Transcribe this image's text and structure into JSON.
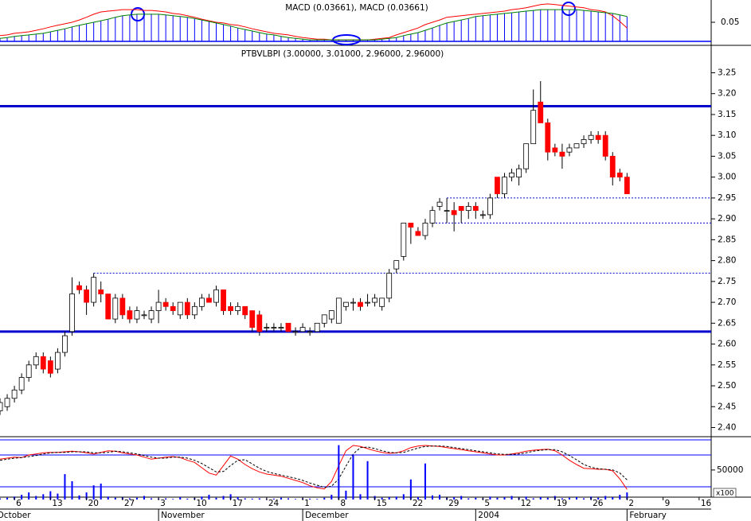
{
  "chart_data": [
    {
      "type": "candlestick",
      "title": "PTBVLBPI (3.00000, 3.01000, 2.96000, 2.96000)",
      "x": [
        "10-02",
        "10-03",
        "10-06",
        "10-07",
        "10-08",
        "10-09",
        "10-10",
        "10-13",
        "10-14",
        "10-15",
        "10-16",
        "10-17",
        "10-20",
        "10-21",
        "10-22",
        "10-23",
        "10-24",
        "10-27",
        "10-28",
        "10-29",
        "10-30",
        "10-31",
        "11-03",
        "11-04",
        "11-05",
        "11-06",
        "11-07",
        "11-10",
        "11-11",
        "11-12",
        "11-13",
        "11-14",
        "11-17",
        "11-18",
        "11-19",
        "11-20",
        "11-21",
        "11-24",
        "11-25",
        "11-26",
        "11-27",
        "11-28",
        "12-01",
        "12-02",
        "12-03",
        "12-04",
        "12-05",
        "12-08",
        "12-09",
        "12-10",
        "12-11",
        "12-12",
        "12-15",
        "12-16",
        "12-17",
        "12-18",
        "12-19",
        "12-22",
        "12-23",
        "12-24",
        "12-25",
        "12-26",
        "12-29",
        "12-30",
        "12-31",
        "01-01",
        "01-02",
        "01-05",
        "01-06",
        "01-07",
        "01-08",
        "01-09",
        "01-12",
        "01-13",
        "01-14",
        "01-15",
        "01-16",
        "01-19",
        "01-20",
        "01-21",
        "01-22",
        "01-23",
        "01-26",
        "01-27",
        "01-28",
        "01-29",
        "01-30",
        "02-02"
      ],
      "open": [
        2.44,
        2.45,
        2.47,
        2.49,
        2.52,
        2.55,
        2.57,
        2.56,
        2.54,
        2.58,
        2.63,
        2.74,
        2.73,
        2.7,
        2.73,
        2.72,
        2.66,
        2.71,
        2.68,
        2.66,
        2.67,
        2.66,
        2.68,
        2.7,
        2.69,
        2.67,
        2.7,
        2.67,
        2.69,
        2.71,
        2.7,
        2.73,
        2.69,
        2.68,
        2.69,
        2.68,
        2.67,
        2.64,
        2.64,
        2.64,
        2.65,
        2.63,
        2.63,
        2.63,
        2.63,
        2.65,
        2.66,
        2.65,
        2.69,
        2.7,
        2.7,
        2.7,
        2.7,
        2.69,
        2.71,
        2.78,
        2.81,
        2.89,
        2.87,
        2.86,
        2.89,
        2.93,
        2.92,
        2.92,
        2.93,
        2.92,
        2.93,
        2.91,
        2.91,
        3.0,
        2.96,
        3.0,
        3.0,
        3.02,
        3.08,
        3.18,
        3.13,
        3.07,
        3.06,
        3.06,
        3.07,
        3.08,
        3.09,
        3.1,
        3.1,
        3.05,
        3.01,
        3.0
      ],
      "high": [
        2.47,
        2.48,
        2.5,
        2.53,
        2.56,
        2.58,
        2.58,
        2.57,
        2.59,
        2.63,
        2.76,
        2.75,
        2.74,
        2.77,
        2.75,
        2.72,
        2.72,
        2.72,
        2.69,
        2.69,
        2.68,
        2.69,
        2.73,
        2.71,
        2.7,
        2.7,
        2.71,
        2.7,
        2.72,
        2.72,
        2.74,
        2.73,
        2.7,
        2.7,
        2.69,
        2.68,
        2.68,
        2.65,
        2.65,
        2.65,
        2.65,
        2.64,
        2.65,
        2.64,
        2.65,
        2.67,
        2.68,
        2.71,
        2.7,
        2.71,
        2.71,
        2.72,
        2.72,
        2.71,
        2.78,
        2.8,
        2.89,
        2.89,
        2.88,
        2.9,
        2.93,
        2.95,
        2.95,
        2.94,
        2.93,
        2.94,
        2.94,
        2.92,
        2.96,
        3.0,
        3.01,
        3.02,
        3.03,
        3.08,
        3.21,
        3.23,
        3.14,
        3.08,
        3.08,
        3.08,
        3.08,
        3.1,
        3.11,
        3.11,
        3.11,
        3.06,
        3.02,
        3.01
      ],
      "low": [
        2.43,
        2.44,
        2.46,
        2.48,
        2.51,
        2.54,
        2.53,
        2.52,
        2.53,
        2.57,
        2.62,
        2.72,
        2.67,
        2.69,
        2.7,
        2.66,
        2.65,
        2.66,
        2.65,
        2.65,
        2.66,
        2.65,
        2.65,
        2.68,
        2.67,
        2.66,
        2.66,
        2.66,
        2.68,
        2.7,
        2.69,
        2.67,
        2.67,
        2.67,
        2.66,
        2.63,
        2.62,
        2.63,
        2.63,
        2.63,
        2.63,
        2.62,
        2.63,
        2.62,
        2.63,
        2.64,
        2.65,
        2.65,
        2.68,
        2.68,
        2.68,
        2.69,
        2.69,
        2.68,
        2.7,
        2.77,
        2.8,
        2.84,
        2.86,
        2.85,
        2.88,
        2.92,
        2.89,
        2.87,
        2.89,
        2.9,
        2.9,
        2.9,
        2.9,
        2.95,
        2.95,
        2.99,
        2.98,
        3.01,
        3.08,
        3.13,
        3.04,
        3.05,
        3.02,
        3.05,
        3.07,
        3.07,
        3.08,
        3.08,
        3.04,
        2.98,
        2.99,
        2.96
      ],
      "close": [
        2.46,
        2.47,
        2.49,
        2.52,
        2.55,
        2.57,
        2.54,
        2.53,
        2.58,
        2.62,
        2.72,
        2.73,
        2.7,
        2.76,
        2.72,
        2.66,
        2.71,
        2.67,
        2.66,
        2.68,
        2.67,
        2.68,
        2.7,
        2.69,
        2.68,
        2.7,
        2.67,
        2.69,
        2.71,
        2.7,
        2.73,
        2.68,
        2.68,
        2.69,
        2.67,
        2.64,
        2.63,
        2.64,
        2.64,
        2.64,
        2.63,
        2.63,
        2.64,
        2.63,
        2.65,
        2.67,
        2.68,
        2.71,
        2.7,
        2.7,
        2.69,
        2.7,
        2.71,
        2.71,
        2.77,
        2.8,
        2.89,
        2.88,
        2.86,
        2.89,
        2.92,
        2.94,
        2.92,
        2.91,
        2.92,
        2.93,
        2.92,
        2.91,
        2.95,
        2.96,
        3.0,
        3.01,
        3.02,
        3.08,
        3.16,
        3.13,
        3.06,
        3.06,
        3.05,
        3.07,
        3.08,
        3.09,
        3.1,
        3.09,
        3.05,
        3.0,
        3.0,
        2.96
      ],
      "up_color": "#ffffff",
      "down_color": "#ff0000",
      "ylim": [
        2.38,
        3.31
      ],
      "yticks": [
        {
          "value": 2.4,
          "label": "2.40"
        },
        2.45,
        {
          "value": 2.5,
          "label": "2.50"
        },
        2.55,
        {
          "value": 2.6,
          "label": "2.60"
        },
        2.65,
        {
          "value": 2.7,
          "label": "2.70"
        },
        2.75,
        {
          "value": 2.8,
          "label": "2.80"
        },
        2.85,
        {
          "value": 2.9,
          "label": "2.90"
        },
        2.95,
        {
          "value": 3,
          "label": "3.00"
        },
        3.05,
        {
          "value": 3.1,
          "label": "3.10"
        },
        3.15,
        {
          "value": 3.2,
          "label": "3.20"
        },
        3.25
      ],
      "xticks": [
        {
          "value": "10-06",
          "label": "6"
        },
        {
          "value": "10-13",
          "label": "13"
        },
        {
          "value": "10-20",
          "label": "20"
        },
        {
          "value": "10-27",
          "label": "27"
        },
        {
          "value": "11-03",
          "label": "3"
        },
        {
          "value": "11-10",
          "label": "10"
        },
        {
          "value": "11-17",
          "label": "17"
        },
        {
          "value": "11-24",
          "label": "24"
        },
        {
          "value": "12-01",
          "label": "1"
        },
        {
          "value": "12-08",
          "label": "8"
        },
        {
          "value": "12-15",
          "label": "15"
        },
        {
          "value": "12-22",
          "label": "22"
        },
        {
          "value": "12-29",
          "label": "29"
        },
        {
          "value": "01-05",
          "label": "5"
        },
        {
          "value": "01-12",
          "label": "12"
        },
        {
          "value": "01-19",
          "label": "19"
        },
        {
          "value": "01-26",
          "label": "26"
        },
        {
          "value": "02-02",
          "label": "2"
        },
        {
          "value": "02-09",
          "label": "9"
        },
        {
          "value": "02-16",
          "label": "16"
        }
      ],
      "month_labels": [
        {
          "value": "10-01",
          "label": "October"
        },
        {
          "value": "11-03",
          "label": "November"
        },
        {
          "value": "12-01",
          "label": "December"
        },
        {
          "value": "01-02",
          "label": "2004"
        },
        {
          "value": "02-02",
          "label": "February"
        }
      ],
      "hlines": [
        {
          "value": 3.17,
          "style": "solid"
        },
        {
          "value": 2.63,
          "style": "solid"
        },
        {
          "value": 2.77,
          "style": "dotted",
          "from": "10-21"
        },
        {
          "value": 2.95,
          "style": "dotted",
          "from": "12-29"
        },
        {
          "value": 2.89,
          "style": "dotted",
          "from": "12-25"
        }
      ]
    },
    {
      "type": "line",
      "title": "MACD (0.03661), MACD (0.03661)",
      "series": [
        {
          "color": "#ff0000",
          "values": [
            0.015,
            0.017,
            0.021,
            0.023,
            0.025,
            0.029,
            0.033,
            0.038,
            0.042,
            0.046,
            0.05,
            0.056,
            0.063,
            0.071,
            0.077,
            0.079,
            0.081,
            0.083,
            0.083,
            0.083,
            0.081,
            0.081,
            0.079,
            0.077,
            0.073,
            0.071,
            0.067,
            0.063,
            0.058,
            0.054,
            0.05,
            0.048,
            0.044,
            0.042,
            0.038,
            0.033,
            0.029,
            0.025,
            0.021,
            0.019,
            0.017,
            0.013,
            0.01,
            0.008,
            0.006,
            0.006,
            0.004,
            0.004,
            0.004,
            0.004,
            0.004,
            0.004,
            0.006,
            0.008,
            0.01,
            0.017,
            0.023,
            0.029,
            0.035,
            0.044,
            0.05,
            0.056,
            0.063,
            0.065,
            0.067,
            0.069,
            0.071,
            0.073,
            0.075,
            0.077,
            0.079,
            0.083,
            0.085,
            0.088,
            0.092,
            0.096,
            0.098,
            0.096,
            0.094,
            0.092,
            0.09,
            0.088,
            0.083,
            0.081,
            0.077,
            0.067,
            0.052,
            0.035
          ]
        },
        {
          "color": "#008000",
          "values": [
            0.008,
            0.01,
            0.013,
            0.015,
            0.017,
            0.019,
            0.021,
            0.025,
            0.029,
            0.033,
            0.038,
            0.042,
            0.046,
            0.05,
            0.054,
            0.058,
            0.063,
            0.067,
            0.069,
            0.071,
            0.071,
            0.071,
            0.071,
            0.069,
            0.067,
            0.065,
            0.063,
            0.06,
            0.056,
            0.052,
            0.048,
            0.044,
            0.04,
            0.035,
            0.031,
            0.027,
            0.023,
            0.019,
            0.017,
            0.013,
            0.01,
            0.008,
            0.006,
            0.004,
            0.004,
            0.004,
            0.004,
            0.004,
            0.004,
            0.004,
            0.004,
            0.004,
            0.004,
            0.006,
            0.008,
            0.01,
            0.015,
            0.019,
            0.023,
            0.029,
            0.035,
            0.042,
            0.048,
            0.052,
            0.056,
            0.06,
            0.065,
            0.067,
            0.069,
            0.071,
            0.073,
            0.075,
            0.077,
            0.079,
            0.081,
            0.083,
            0.083,
            0.083,
            0.083,
            0.083,
            0.083,
            0.081,
            0.079,
            0.077,
            0.075,
            0.073,
            0.069,
            0.065
          ]
        }
      ],
      "histogram_color": "#0000ff",
      "ylim": [
        -0.002,
        0.104
      ],
      "yticks": [
        0.05
      ]
    },
    {
      "type": "combo",
      "series": [
        {
          "color": "#ff0000",
          "style": "solid",
          "values": [
            72,
            74,
            76,
            75,
            80,
            82,
            84,
            85,
            85,
            86,
            87,
            86,
            84,
            82,
            85,
            88,
            87,
            84,
            82,
            80,
            76,
            72,
            74,
            76,
            77,
            75,
            70,
            66,
            56,
            46,
            42,
            60,
            78,
            72,
            62,
            54,
            48,
            44,
            42,
            40,
            36,
            32,
            28,
            22,
            18,
            16,
            30,
            60,
            88,
            98,
            96,
            92,
            88,
            85,
            83,
            84,
            88,
            94,
            97,
            98,
            97,
            96,
            94,
            92,
            90,
            88,
            86,
            84,
            82,
            80,
            80,
            82,
            84,
            87,
            89,
            90,
            91,
            88,
            80,
            70,
            62,
            55,
            54,
            53,
            53,
            50,
            35,
            15
          ]
        },
        {
          "color": "#000000",
          "style": "dashed",
          "values": [
            70,
            72,
            74,
            75,
            77,
            79,
            82,
            84,
            85,
            85,
            86,
            86,
            86,
            84,
            84,
            85,
            87,
            86,
            84,
            82,
            79,
            76,
            74,
            74,
            76,
            76,
            74,
            70,
            64,
            56,
            48,
            49,
            60,
            70,
            71,
            63,
            55,
            49,
            45,
            42,
            39,
            36,
            32,
            27,
            23,
            19,
            21,
            35,
            59,
            82,
            94,
            95,
            92,
            88,
            85,
            84,
            85,
            89,
            93,
            96,
            97,
            97,
            96,
            94,
            92,
            90,
            88,
            86,
            84,
            82,
            81,
            81,
            82,
            84,
            87,
            89,
            90,
            90,
            86,
            79,
            71,
            62,
            57,
            54,
            53,
            52,
            46,
            33
          ]
        },
        {
          "color": "#0000ff",
          "style": "bar",
          "axis": "y2",
          "values": [
            2000,
            3000,
            5000,
            8000,
            12000,
            6000,
            9000,
            14000,
            10000,
            43000,
            31000,
            7000,
            12000,
            24000,
            27000,
            5000,
            3000,
            4000,
            2000,
            3000,
            6000,
            2000,
            1500,
            2000,
            1000,
            4000,
            1500,
            2500,
            5000,
            8000,
            3000,
            6000,
            9000,
            4000,
            2000,
            1500,
            2000,
            1000,
            1500,
            3000,
            2000,
            1000,
            2000,
            1500,
            1000,
            3000,
            8000,
            92000,
            15000,
            76000,
            9000,
            65000,
            6000,
            3000,
            4000,
            5000,
            9000,
            34000,
            4000,
            61000,
            7000,
            8000,
            3000,
            4000,
            6000,
            2000,
            3000,
            2000,
            5000,
            3000,
            4000,
            6000,
            3000,
            5000,
            2000,
            4000,
            3000,
            6000,
            2000,
            3000,
            4000,
            2000,
            5000,
            3000,
            6000,
            4000,
            8000,
            12000
          ]
        }
      ],
      "ylim": [
        -4,
        108.5
      ],
      "hlines": [
        20,
        80
      ],
      "y2lim": [
        0,
        101000
      ],
      "y2ticks": [
        50000
      ],
      "y2label": "x100"
    }
  ]
}
